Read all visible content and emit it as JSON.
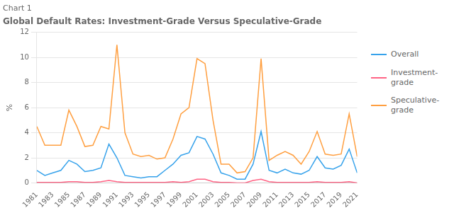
{
  "chart_data": {
    "type": "line",
    "title": "Global Default Rates: Investment-Grade Versus Speculative-Grade",
    "subtitle": "Chart 1",
    "ylabel": "%",
    "x": [
      1981,
      1982,
      1983,
      1984,
      1985,
      1986,
      1987,
      1988,
      1989,
      1990,
      1991,
      1992,
      1993,
      1994,
      1995,
      1996,
      1997,
      1998,
      1999,
      2000,
      2001,
      2002,
      2003,
      2004,
      2005,
      2006,
      2007,
      2008,
      2009,
      2010,
      2011,
      2012,
      2013,
      2014,
      2015,
      2016,
      2017,
      2018,
      2019,
      2020,
      2021
    ],
    "xlim": [
      1981,
      2021
    ],
    "xticks": [
      1981,
      1983,
      1985,
      1987,
      1989,
      1991,
      1993,
      1995,
      1997,
      1999,
      2001,
      2003,
      2005,
      2007,
      2009,
      2011,
      2013,
      2015,
      2017,
      2019,
      2021
    ],
    "ylim": [
      0,
      12
    ],
    "yticks": [
      0,
      2,
      4,
      6,
      8,
      10,
      12
    ],
    "grid": true,
    "legend": "right",
    "series": [
      {
        "name": "Overall",
        "values": [
          1.0,
          0.6,
          0.8,
          1.0,
          1.8,
          1.5,
          0.9,
          1.0,
          1.2,
          3.1,
          2.0,
          0.6,
          0.5,
          0.4,
          0.5,
          0.5,
          1.0,
          1.5,
          2.2,
          2.4,
          3.7,
          3.5,
          2.3,
          0.8,
          0.6,
          0.3,
          0.3,
          1.5,
          4.1,
          1.0,
          0.8,
          1.1,
          0.8,
          0.7,
          1.0,
          2.1,
          1.2,
          1.1,
          1.4,
          2.7,
          0.8
        ]
      },
      {
        "name": "Investment-grade",
        "values": [
          0.05,
          0.05,
          0.05,
          0.05,
          0.1,
          0.1,
          0.05,
          0.05,
          0.1,
          0.2,
          0.1,
          0.05,
          0.05,
          0.05,
          0.05,
          0.05,
          0.05,
          0.1,
          0.05,
          0.1,
          0.3,
          0.3,
          0.1,
          0.05,
          0.05,
          0.0,
          0.0,
          0.2,
          0.3,
          0.1,
          0.05,
          0.05,
          0.05,
          0.05,
          0.05,
          0.1,
          0.05,
          0.05,
          0.05,
          0.1,
          0.0
        ]
      },
      {
        "name": "Speculative-\ngrade",
        "values": [
          4.5,
          3.0,
          3.0,
          3.0,
          5.8,
          4.5,
          2.9,
          3.0,
          4.5,
          4.3,
          11.0,
          4.0,
          2.3,
          2.1,
          2.2,
          1.9,
          2.0,
          3.5,
          5.5,
          6.0,
          9.9,
          9.5,
          5.0,
          1.5,
          1.5,
          0.8,
          0.9,
          2.0,
          9.9,
          1.8,
          2.2,
          2.5,
          2.2,
          1.5,
          2.5,
          4.1,
          2.3,
          2.2,
          2.3,
          5.5,
          2.1
        ]
      }
    ]
  }
}
